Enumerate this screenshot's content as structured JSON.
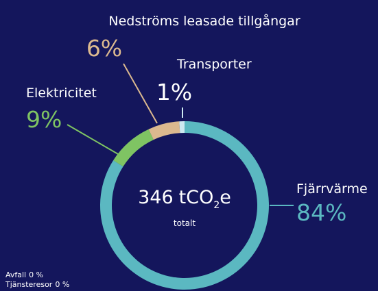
{
  "chart_data": {
    "type": "donut",
    "series": [
      {
        "name": "Fjärrvärme",
        "color": "#5bb8c1",
        "values": [
          84
        ],
        "value_labels": [
          "84%"
        ]
      },
      {
        "name": "Elektricitet",
        "color": "#7fc463",
        "values": [
          9
        ],
        "value_labels": [
          "9%"
        ]
      },
      {
        "name": "Nedströms leasade tillgångar",
        "color": "#dcb98f",
        "values": [
          6
        ],
        "value_labels": [
          "6%"
        ]
      },
      {
        "name": "Transporter",
        "color": "#cde9f1",
        "values": [
          1
        ],
        "value_labels": [
          "1%"
        ]
      },
      {
        "name": "Avfall",
        "color": "#ffffff",
        "values": [
          0
        ],
        "value_labels": [
          "0 %"
        ]
      },
      {
        "name": "Tjänsteresor",
        "color": "#ffffff",
        "values": [
          0
        ],
        "value_labels": [
          "0 %"
        ]
      }
    ],
    "center_label": {
      "value": 346,
      "unit": "tCO",
      "subscript": "2",
      "unit_end": "e",
      "caption": "totalt"
    }
  }
}
